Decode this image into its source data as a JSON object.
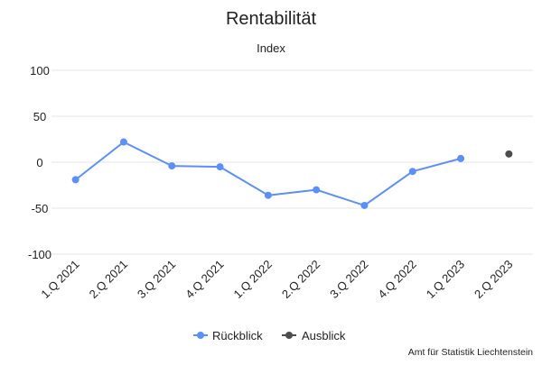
{
  "colors": {
    "rueckblick": "#5b8ff9",
    "ausblick": "#4d4d4d",
    "grid": "#e6e6e6",
    "text": "#222222"
  },
  "chart_data": {
    "type": "line",
    "title": "Rentabilität",
    "subtitle": "Index",
    "categories": [
      "1.Q 2021",
      "2.Q 2021",
      "3.Q 2021",
      "4.Q 2021",
      "1.Q 2022",
      "2.Q 2022",
      "3.Q 2022",
      "4.Q 2022",
      "1.Q 2023",
      "2.Q 2023"
    ],
    "series": [
      {
        "name": "Rückblick",
        "values": [
          -19,
          22,
          -4,
          -5,
          -36,
          -30,
          -47,
          -10,
          4,
          null
        ]
      },
      {
        "name": "Ausblick",
        "values": [
          null,
          null,
          null,
          null,
          null,
          null,
          null,
          null,
          null,
          9
        ]
      }
    ],
    "ylim": [
      -100,
      100
    ],
    "yticks": [
      100,
      50,
      0,
      -50,
      -100
    ],
    "grid": true,
    "legend": "bottom"
  },
  "credit": "Amt für Statistik Liechtenstein"
}
